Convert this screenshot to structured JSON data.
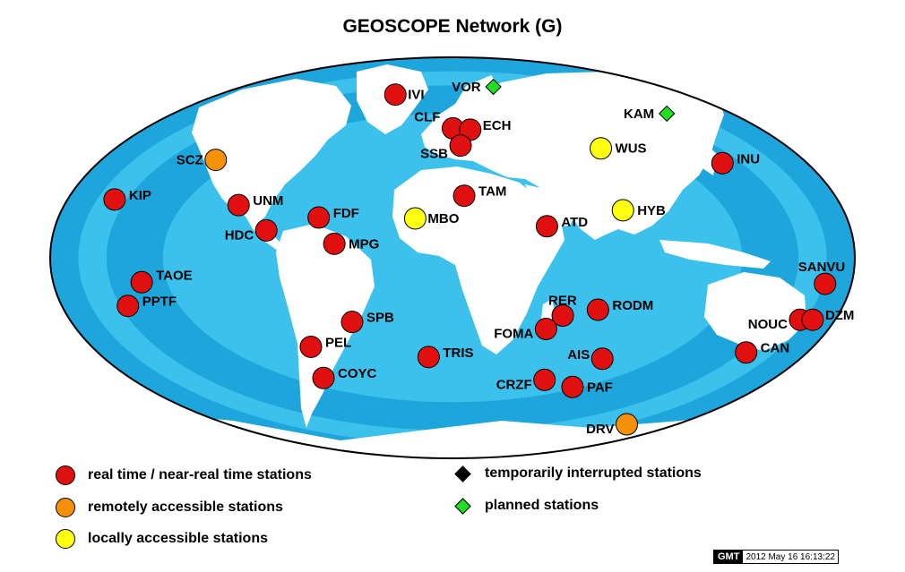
{
  "title": "GEOSCOPE Network (G)",
  "colors": {
    "ocean_deep": "#1ea6dc",
    "ocean_mid": "#3cc0ec",
    "ocean_shallow": "#8fe0f5",
    "land": "#ffffff",
    "realtime": "#e01010",
    "remote": "#f5900a",
    "local": "#ffff10",
    "interrupted": "#000000",
    "planned": "#22dd22"
  },
  "stations": [
    {
      "code": "IVI",
      "type": "realtime",
      "lon": -44.0,
      "lat": 65.0
    },
    {
      "code": "CLF",
      "type": "realtime",
      "lon": 2.3,
      "lat": 48.0
    },
    {
      "code": "ECH",
      "type": "realtime",
      "lon": 7.1,
      "lat": 48.2
    },
    {
      "code": "SSB",
      "type": "realtime",
      "lon": 4.5,
      "lat": 45.3
    },
    {
      "code": "VOR",
      "type": "planned",
      "lon": 35.0,
      "lat": 69.0
    },
    {
      "code": "KAM",
      "type": "planned",
      "lon": 138.0,
      "lat": 56.0
    },
    {
      "code": "WUS",
      "type": "local",
      "lon": 79.2,
      "lat": 41.2
    },
    {
      "code": "INU",
      "type": "realtime",
      "lon": 137.0,
      "lat": 35.3
    },
    {
      "code": "SCZ",
      "type": "remote",
      "lon": -121.4,
      "lat": 36.6
    },
    {
      "code": "KIP",
      "type": "realtime",
      "lon": -158.0,
      "lat": 21.4
    },
    {
      "code": "UNM",
      "type": "realtime",
      "lon": -99.2,
      "lat": 19.3
    },
    {
      "code": "HDC",
      "type": "realtime",
      "lon": -84.1,
      "lat": 10.0
    },
    {
      "code": "FDF",
      "type": "realtime",
      "lon": -61.1,
      "lat": 14.7
    },
    {
      "code": "MPG",
      "type": "realtime",
      "lon": -53.0,
      "lat": 5.1
    },
    {
      "code": "MBO",
      "type": "local",
      "lon": -17.0,
      "lat": 14.4
    },
    {
      "code": "TAM",
      "type": "realtime",
      "lon": 5.5,
      "lat": 22.8
    },
    {
      "code": "ATD",
      "type": "realtime",
      "lon": 42.8,
      "lat": 11.5
    },
    {
      "code": "HYB",
      "type": "local",
      "lon": 78.5,
      "lat": 17.4
    },
    {
      "code": "TAOE",
      "type": "realtime",
      "lon": -140.1,
      "lat": -8.9
    },
    {
      "code": "PPTF",
      "type": "realtime",
      "lon": -149.6,
      "lat": -17.6
    },
    {
      "code": "SPB",
      "type": "realtime",
      "lon": -47.4,
      "lat": -23.6
    },
    {
      "code": "PEL",
      "type": "realtime",
      "lon": -70.7,
      "lat": -33.1
    },
    {
      "code": "COYC",
      "type": "realtime",
      "lon": -72.1,
      "lat": -45.6
    },
    {
      "code": "TRIS",
      "type": "realtime",
      "lon": -12.3,
      "lat": -37.1
    },
    {
      "code": "RER",
      "type": "realtime",
      "lon": 55.7,
      "lat": -21.2
    },
    {
      "code": "RODM",
      "type": "realtime",
      "lon": 63.4,
      "lat": -19.7
    },
    {
      "code": "FOMA",
      "type": "realtime",
      "lon": 47.0,
      "lat": -24.9
    },
    {
      "code": "AIS",
      "type": "realtime",
      "lon": 77.6,
      "lat": -37.8
    },
    {
      "code": "CRZF",
      "type": "realtime",
      "lon": 51.9,
      "lat": -46.4
    },
    {
      "code": "PAF",
      "type": "realtime",
      "lon": 70.2,
      "lat": -49.4
    },
    {
      "code": "DRV",
      "type": "remote",
      "lon": 140.0,
      "lat": -66.7
    },
    {
      "code": "SANVU",
      "type": "realtime",
      "lon": 167.2,
      "lat": -15.4
    },
    {
      "code": "NOUC",
      "type": "realtime",
      "lon": 166.4,
      "lat": -22.1
    },
    {
      "code": "DZM",
      "type": "realtime",
      "lon": 166.4,
      "lat": -22.1
    },
    {
      "code": "CAN",
      "type": "realtime",
      "lon": 149.0,
      "lat": -35.3
    }
  ],
  "legend": [
    {
      "label": "real time / near-real time stations",
      "type": "realtime",
      "symbol": "circle"
    },
    {
      "label": "remotely accessible stations",
      "type": "remote",
      "symbol": "circle"
    },
    {
      "label": "locally accessible stations",
      "type": "local",
      "symbol": "circle"
    },
    {
      "label": "temporarily interrupted stations",
      "type": "interrupted",
      "symbol": "diamond"
    },
    {
      "label": "planned stations",
      "type": "planned",
      "symbol": "diamond"
    }
  ],
  "footer": {
    "logo": "GMT",
    "timestamp": "2012 May 16 16:13:22"
  }
}
